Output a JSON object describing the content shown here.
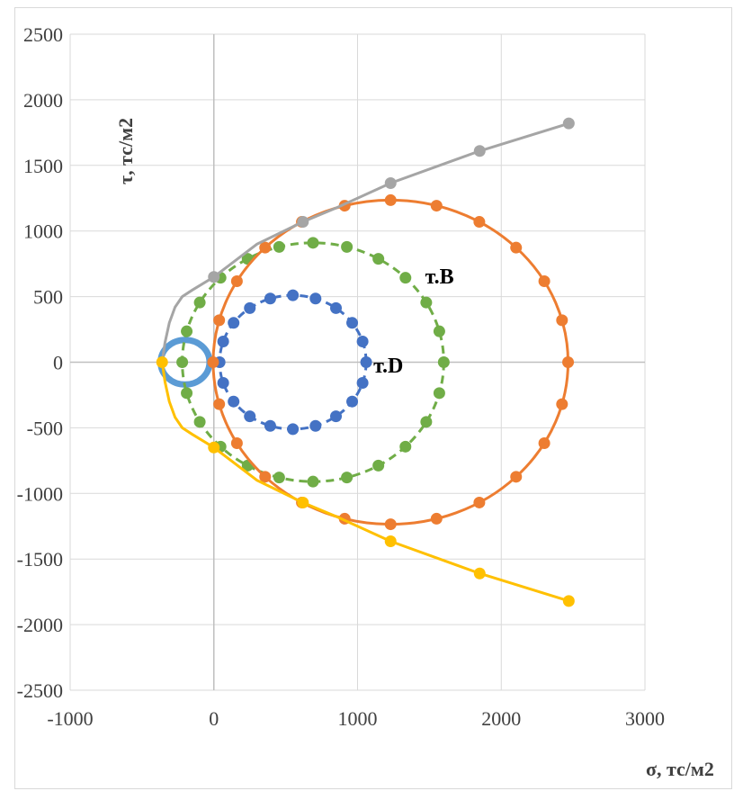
{
  "chart_data": {
    "type": "scatter",
    "title": "",
    "xlabel": "σ, тс/м2",
    "ylabel": "τ, тс/м2",
    "xlim": [
      -1000,
      3000
    ],
    "ylim": [
      -2500,
      2500
    ],
    "xticks": [
      "-1000",
      "0",
      "1000",
      "2000",
      "3000"
    ],
    "yticks": [
      "2500",
      "2000",
      "1500",
      "1000",
      "500",
      "0",
      "-500",
      "-1000",
      "-1500",
      "-2000",
      "-2500"
    ],
    "grid": true,
    "legend": "none",
    "annotations": [
      {
        "text": "т.В",
        "x": 1470,
        "y": 600
      },
      {
        "text": "т.D",
        "x": 1110,
        "y": -80
      }
    ],
    "series": [
      {
        "kind": "circle",
        "color": "#5b9bd5",
        "center": -200,
        "radius": 170,
        "n_points": 0,
        "dashed": false,
        "stroke_width": 7
      },
      {
        "kind": "circle",
        "color": "#4472c4",
        "center": 550,
        "radius": 510,
        "n_points": 20,
        "dashed": true,
        "stroke_width": 3
      },
      {
        "kind": "circle",
        "color": "#70ad47",
        "center": 690,
        "radius": 910,
        "n_points": 24,
        "dashed": true,
        "stroke_width": 3
      },
      {
        "kind": "circle",
        "color": "#ed7d31",
        "center": 1230,
        "radius": 1235,
        "n_points": 24,
        "dashed": false,
        "stroke_width": 3
      },
      {
        "kind": "line",
        "color": "#a5a5a5",
        "x": [
          -360,
          -340,
          -310,
          -270,
          -220,
          -150,
          0,
          300,
          620,
          850,
          1230,
          1850,
          2470
        ],
        "y": [
          0,
          150,
          300,
          420,
          500,
          550,
          650,
          900,
          1070,
          1175,
          1365,
          1610,
          1820
        ],
        "markers": [
          false,
          false,
          false,
          false,
          false,
          false,
          true,
          false,
          true,
          false,
          true,
          true,
          true
        ]
      },
      {
        "kind": "line",
        "color": "#ffc000",
        "x": [
          -360,
          -340,
          -310,
          -270,
          -220,
          -150,
          0,
          300,
          620,
          850,
          1230,
          1850,
          2470
        ],
        "y": [
          0,
          -150,
          -300,
          -420,
          -500,
          -550,
          -650,
          -900,
          -1070,
          -1175,
          -1365,
          -1610,
          -1820
        ],
        "markers": [
          true,
          false,
          false,
          false,
          false,
          false,
          true,
          false,
          true,
          false,
          true,
          true,
          true
        ]
      }
    ]
  }
}
